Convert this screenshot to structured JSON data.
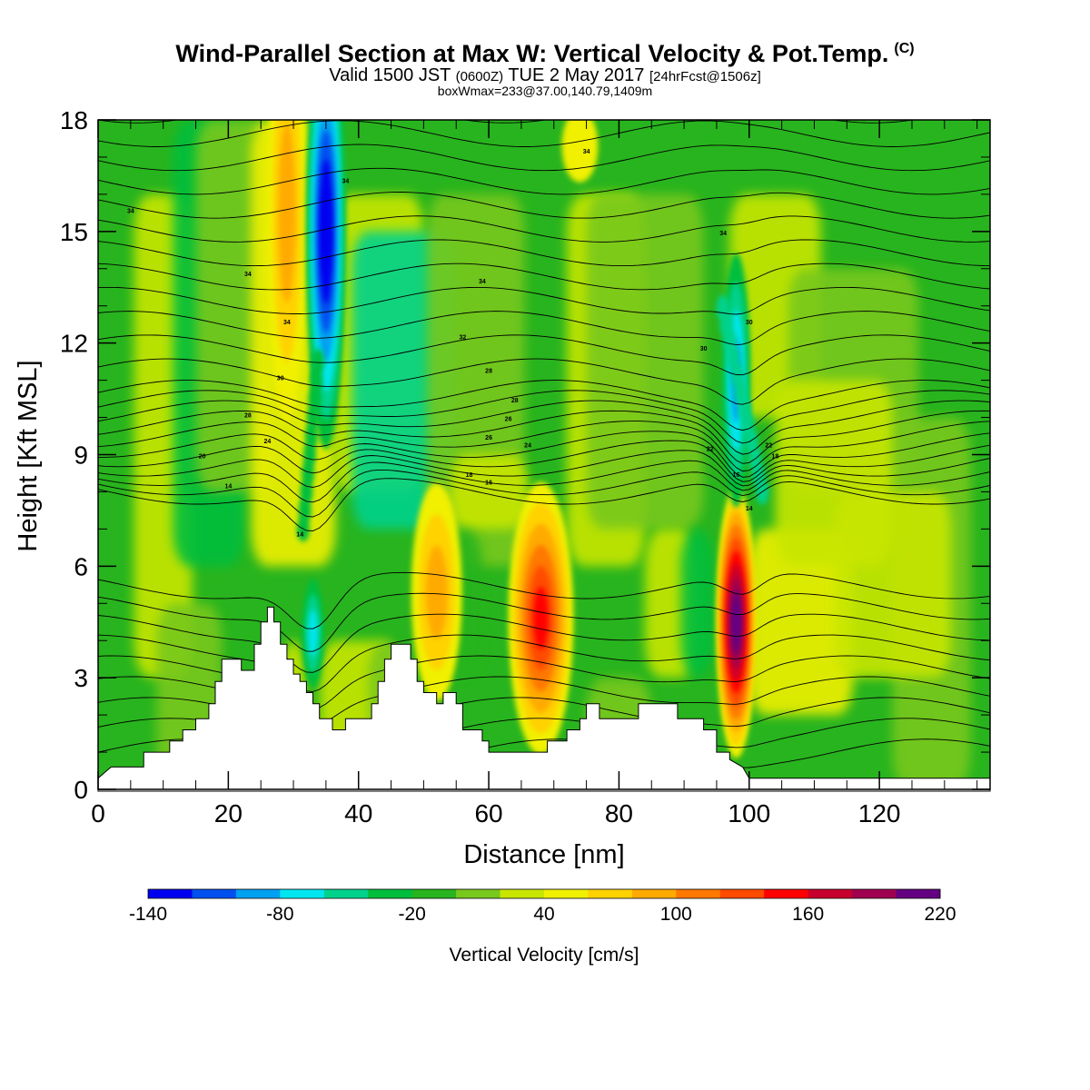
{
  "header": {
    "title": "Wind-Parallel Section at Max W: Vertical Velocity & Pot.Temp.",
    "title_mark": "(C)",
    "valid_pre": "Valid 1500 JST",
    "valid_z": "(0600Z)",
    "valid_date": "TUE 2 May 2017",
    "valid_fcst": "[24hrFcst@1506z]",
    "box_info": "boxWmax=233@37.00,140.79,1409m"
  },
  "chart_data": {
    "type": "heatmap",
    "xlabel": "Distance [nm]",
    "ylabel": "Height [Kft MSL]",
    "xlim": [
      0,
      137
    ],
    "ylim": [
      0,
      18
    ],
    "x_ticks": [
      0,
      20,
      40,
      60,
      80,
      100,
      120
    ],
    "y_ticks": [
      0,
      3,
      6,
      9,
      12,
      15,
      18
    ],
    "colorbar": {
      "label": "Vertical Velocity [cm/s]",
      "min": -140,
      "max": 220,
      "step": 20,
      "tick_labels": [
        -140,
        -80,
        -20,
        40,
        100,
        160,
        220
      ],
      "colors": [
        "#0000f0",
        "#0050f0",
        "#00a0f0",
        "#00e6f0",
        "#00d28c",
        "#00be3c",
        "#28b41e",
        "#78c81e",
        "#c8e600",
        "#f0f000",
        "#ffd200",
        "#ffaa00",
        "#ff7800",
        "#ff4b00",
        "#ff0000",
        "#c8002d",
        "#a00050",
        "#640082"
      ]
    },
    "terrain_kft": [
      [
        0,
        0.3
      ],
      [
        2,
        0.6
      ],
      [
        7,
        0.6
      ],
      [
        7,
        1.0
      ],
      [
        11,
        1.0
      ],
      [
        11,
        1.3
      ],
      [
        13,
        1.3
      ],
      [
        13,
        1.6
      ],
      [
        15,
        1.6
      ],
      [
        15,
        1.9
      ],
      [
        17,
        1.9
      ],
      [
        17,
        2.3
      ],
      [
        18,
        2.3
      ],
      [
        18,
        2.9
      ],
      [
        19,
        2.9
      ],
      [
        19,
        3.5
      ],
      [
        22,
        3.5
      ],
      [
        22,
        3.2
      ],
      [
        24,
        3.2
      ],
      [
        24,
        3.9
      ],
      [
        25,
        3.9
      ],
      [
        25,
        4.5
      ],
      [
        26,
        4.5
      ],
      [
        26,
        4.9
      ],
      [
        27,
        4.9
      ],
      [
        27,
        4.5
      ],
      [
        28,
        4.5
      ],
      [
        28,
        3.9
      ],
      [
        29,
        3.9
      ],
      [
        29,
        3.5
      ],
      [
        30,
        3.5
      ],
      [
        30,
        3.1
      ],
      [
        31,
        3.1
      ],
      [
        31,
        2.9
      ],
      [
        32,
        2.9
      ],
      [
        32,
        2.6
      ],
      [
        33,
        2.6
      ],
      [
        33,
        2.3
      ],
      [
        34,
        2.3
      ],
      [
        34,
        1.9
      ],
      [
        36,
        1.9
      ],
      [
        36,
        1.6
      ],
      [
        38,
        1.6
      ],
      [
        38,
        1.9
      ],
      [
        42,
        1.9
      ],
      [
        42,
        2.3
      ],
      [
        43,
        2.3
      ],
      [
        43,
        2.9
      ],
      [
        44,
        2.9
      ],
      [
        44,
        3.5
      ],
      [
        45,
        3.5
      ],
      [
        45,
        3.9
      ],
      [
        48,
        3.9
      ],
      [
        48,
        3.5
      ],
      [
        49,
        3.5
      ],
      [
        49,
        2.9
      ],
      [
        50,
        2.9
      ],
      [
        50,
        2.6
      ],
      [
        52,
        2.6
      ],
      [
        52,
        2.3
      ],
      [
        53,
        2.3
      ],
      [
        53,
        2.6
      ],
      [
        55,
        2.6
      ],
      [
        55,
        2.3
      ],
      [
        56,
        2.3
      ],
      [
        56,
        1.6
      ],
      [
        59,
        1.6
      ],
      [
        59,
        1.3
      ],
      [
        60,
        1.3
      ],
      [
        60,
        1.0
      ],
      [
        64,
        1.0
      ],
      [
        64,
        1.0
      ],
      [
        69,
        1.0
      ],
      [
        69,
        1.3
      ],
      [
        72,
        1.3
      ],
      [
        72,
        1.6
      ],
      [
        74,
        1.6
      ],
      [
        74,
        1.9
      ],
      [
        75,
        1.9
      ],
      [
        75,
        2.3
      ],
      [
        77,
        2.3
      ],
      [
        77,
        1.9
      ],
      [
        83,
        1.9
      ],
      [
        83,
        2.3
      ],
      [
        89,
        2.3
      ],
      [
        89,
        1.9
      ],
      [
        93,
        1.9
      ],
      [
        93,
        1.6
      ],
      [
        95,
        1.6
      ],
      [
        95,
        1.0
      ],
      [
        97,
        1.0
      ],
      [
        97,
        0.8
      ],
      [
        99,
        0.6
      ],
      [
        100,
        0.3
      ],
      [
        101,
        0.3
      ],
      [
        137,
        0.3
      ]
    ],
    "updrafts_cm_s": [
      {
        "x": 68,
        "z": 4.6,
        "w": 150
      },
      {
        "x": 52,
        "z": 5.3,
        "w": 80
      },
      {
        "x": 98,
        "z": 4.5,
        "w": 233
      },
      {
        "x": 29,
        "z": 15.5,
        "w": 90
      },
      {
        "x": 74,
        "z": 17.3,
        "w": 40
      }
    ],
    "downdrafts_cm_s": [
      {
        "x": 35,
        "z": 15.0,
        "w": -140
      },
      {
        "x": 98,
        "z": 11.0,
        "w": -80
      },
      {
        "x": 33,
        "z": 4.2,
        "w": -70
      }
    ],
    "isotherm_labels": [
      "34",
      "34",
      "34",
      "34",
      "34",
      "34",
      "34",
      "32",
      "30",
      "30",
      "30",
      "28",
      "28",
      "28",
      "26",
      "26",
      "24",
      "24",
      "22",
      "22",
      "20",
      "18",
      "18",
      "16",
      "16",
      "14",
      "14",
      "14"
    ]
  }
}
